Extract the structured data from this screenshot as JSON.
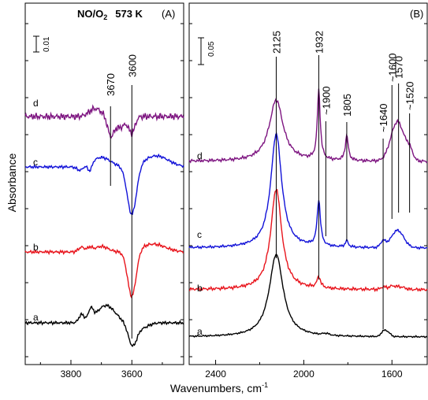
{
  "chart_data": [
    {
      "type": "line",
      "panel_label": "(A)",
      "title_main": "NO/O",
      "title_sub": "2",
      "title_temp": "573 K",
      "scale_label": "0.01",
      "xlim": [
        3950,
        3430
      ],
      "x_ticks": [
        "3800",
        "3600"
      ],
      "x_tick_values": [
        3800,
        3600
      ],
      "series_labels": [
        "a",
        "b",
        "c",
        "d"
      ],
      "markers": [
        {
          "label": "3670",
          "x": 3670
        },
        {
          "label": "3600",
          "x": 3600
        }
      ],
      "colors": {
        "a": "#000000",
        "b": "#e8141c",
        "c": "#1212d8",
        "d": "#7d1480"
      }
    },
    {
      "type": "line",
      "panel_label": "(B)",
      "scale_label": "0.05",
      "xlim": [
        2520,
        1440
      ],
      "x_ticks": [
        "2400",
        "2000",
        "1600"
      ],
      "x_tick_values": [
        2400,
        2000,
        1600
      ],
      "series_labels": [
        "a",
        "b",
        "c",
        "d"
      ],
      "markers": [
        {
          "label": "2125",
          "x": 2125
        },
        {
          "label": "1932",
          "x": 1932
        },
        {
          "label": "~1900",
          "x": 1900
        },
        {
          "label": "1805",
          "x": 1805
        },
        {
          "label": "~1640",
          "x": 1640
        },
        {
          "label": "~1600",
          "x": 1600
        },
        {
          "label": "1570",
          "x": 1570
        },
        {
          "label": "~1520",
          "x": 1520
        }
      ],
      "colors": {
        "a": "#000000",
        "b": "#e8141c",
        "c": "#1212d8",
        "d": "#7d1480"
      }
    }
  ],
  "axes": {
    "ylabel": "Absorbance",
    "xlabel_main": "Wavenumbers, cm",
    "xlabel_sup": "-1"
  }
}
